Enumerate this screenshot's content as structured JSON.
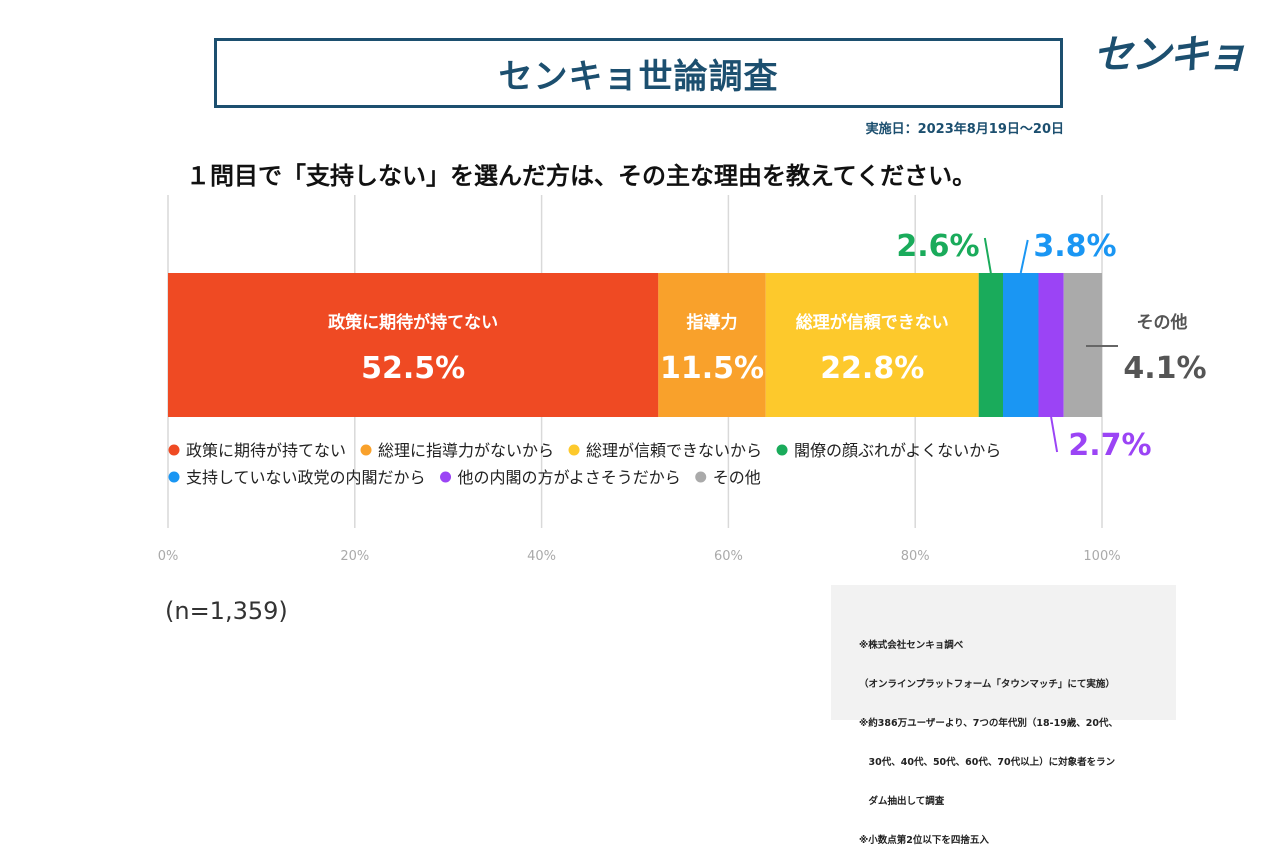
{
  "title": "センキョ世論調査",
  "logo_text": "センキョ",
  "date": "実施日：2023年8月19日〜20日",
  "question": "１問目で「支持しない」を選んだ方は、その主な理由を教えてください。",
  "sample_size": "(n=1,359)",
  "notes": [
    "※株式会社センキョ調べ",
    "（オンラインプラットフォーム「タウンマッチ」にて実施）",
    "※約386万ユーザーより、7つの年代別（18-19歳、20代、",
    "　30代、40代、50代、60代、70代以上）に対象者をラン",
    "　ダム抽出して調査",
    "※小数点第2位以下を四捨五入"
  ],
  "chart_data": {
    "type": "bar",
    "orientation": "horizontal-stacked",
    "xlim": [
      0,
      100
    ],
    "xticks": [
      "0%",
      "20%",
      "40%",
      "60%",
      "80%",
      "100%"
    ],
    "grid": true,
    "series": [
      {
        "name": "政策に期待が持てない",
        "short_label": "政策に期待が持てない",
        "value": 52.5,
        "label": "52.5%",
        "color": "#ef4a23"
      },
      {
        "name": "総理に指導力がないから",
        "short_label": "指導力",
        "value": 11.5,
        "label": "11.5%",
        "color": "#f9a12b"
      },
      {
        "name": "総理が信頼できないから",
        "short_label": "総理が信頼できない",
        "value": 22.8,
        "label": "22.8%",
        "color": "#fdc92c"
      },
      {
        "name": "閣僚の顔ぶれがよくないから",
        "value": 2.6,
        "label": "2.6%",
        "color": "#1aab5b"
      },
      {
        "name": "支持していない政党の内閣だから",
        "value": 3.8,
        "label": "3.8%",
        "color": "#1a96f3"
      },
      {
        "name": "他の内閣の方がよさそうだから",
        "value": 2.7,
        "label": "2.7%",
        "color": "#9b44f5"
      },
      {
        "name": "その他",
        "short_label": "その他",
        "value": 4.1,
        "label": "4.1%",
        "color": "#aaaaaa"
      }
    ]
  }
}
